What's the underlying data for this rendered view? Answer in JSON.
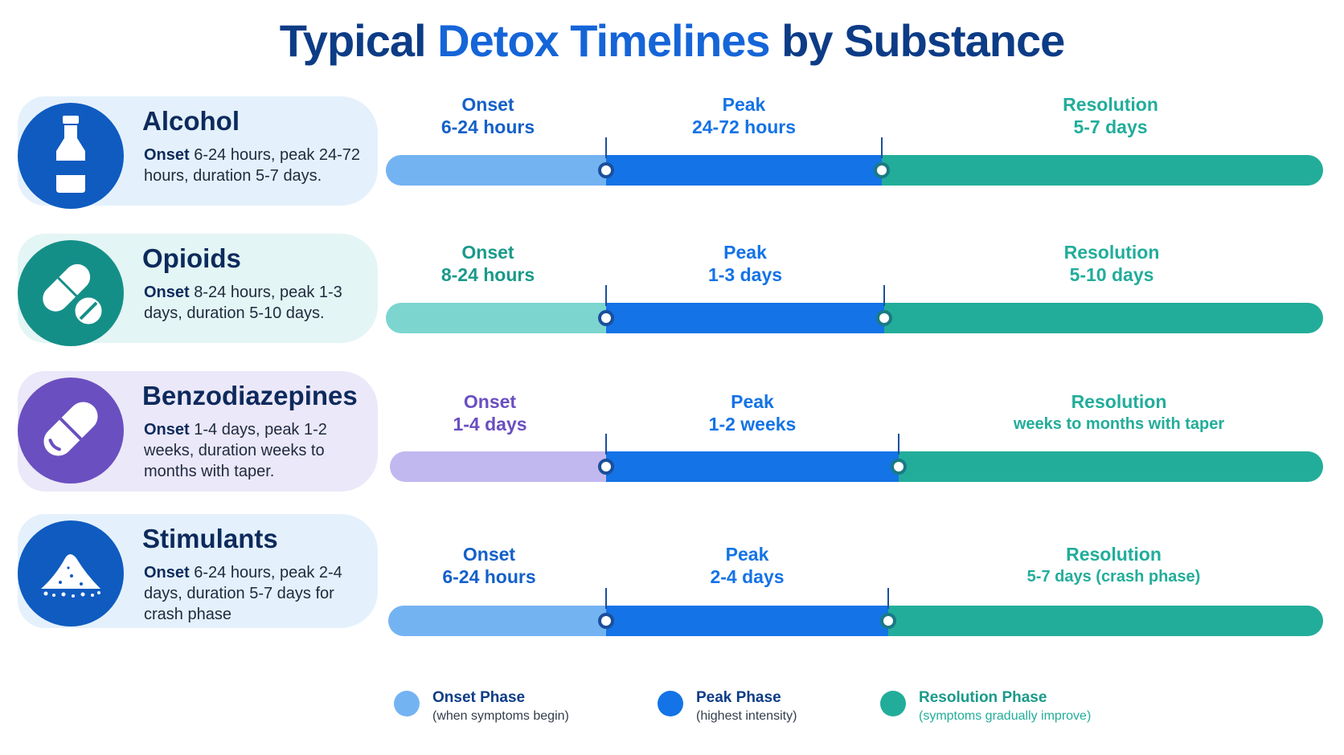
{
  "title": {
    "part1": "Typical",
    "part2": "Detox Timelines",
    "part3": "by Substance"
  },
  "colors": {
    "title_dark": "#0d3c86",
    "title_accent": "#1565d8",
    "peak": "#1473e6",
    "resolution": "#22ad9a"
  },
  "substances": [
    {
      "name": "Alcohol",
      "icon": "bottle-icon",
      "desc_lead": "Onset",
      "desc_rest": " 6-24 hours, peak 24-72 hours, duration 5-7 days.",
      "card_color": "#e4f1fc",
      "circle_color": "#0f5bc0",
      "onset_color": "#74b3f2",
      "onset_label_color": "#1460c9",
      "onset": {
        "label": "Onset",
        "value": "6-24 hours"
      },
      "peak": {
        "label": "Peak",
        "value": "24-72 hours"
      },
      "resolution": {
        "label": "Resolution",
        "value": "5-7 days"
      }
    },
    {
      "name": "Opioids",
      "icon": "pills-icon",
      "desc_lead": "Onset",
      "desc_rest": " 8-24 hours, peak 1-3 days, duration 5-10 days.",
      "card_color": "#e3f5f4",
      "circle_color": "#148f88",
      "onset_color": "#7dd5d0",
      "onset_label_color": "#1a9a8a",
      "onset": {
        "label": "Onset",
        "value": "8-24 hours"
      },
      "peak": {
        "label": "Peak",
        "value": "1-3 days"
      },
      "resolution": {
        "label": "Resolution",
        "value": "5-10 days"
      }
    },
    {
      "name": "Benzodiazepines",
      "icon": "capsule-icon",
      "desc_lead": "Onset",
      "desc_rest": " 1-4 days, peak 1-2 weeks, duration weeks to months with taper.",
      "card_color": "#ebe8f9",
      "circle_color": "#6a4fc0",
      "onset_color": "#c2b8f0",
      "onset_label_color": "#6a4fc0",
      "onset": {
        "label": "Onset",
        "value": "1-4 days"
      },
      "peak": {
        "label": "Peak",
        "value": "1-2 weeks"
      },
      "resolution": {
        "label": "Resolution",
        "value": "weeks to months with taper"
      }
    },
    {
      "name": "Stimulants",
      "icon": "powder-icon",
      "desc_lead": "Onset",
      "desc_rest": " 6-24 hours, peak 2-4 days, duration 5-7 days for crash phase",
      "card_color": "#e4f1fc",
      "circle_color": "#0f5bc0",
      "onset_color": "#74b3f2",
      "onset_label_color": "#1460c9",
      "onset": {
        "label": "Onset",
        "value": "6-24 hours"
      },
      "peak": {
        "label": "Peak",
        "value": "2-4 days"
      },
      "resolution": {
        "label": "Resolution",
        "value": "5-7 days (crash phase)"
      }
    }
  ],
  "legend": [
    {
      "title": "Onset Phase",
      "subtitle": "(when symptoms begin)",
      "color": "#74b3f2",
      "sub_color": "#333d4c"
    },
    {
      "title": "Peak Phase",
      "subtitle": "(highest intensity)",
      "color": "#1473e6",
      "sub_color": "#333d4c"
    },
    {
      "title": "Resolution Phase",
      "subtitle": "(symptoms gradually improve)",
      "color": "#22ad9a",
      "sub_color": "#22ad9a"
    }
  ]
}
